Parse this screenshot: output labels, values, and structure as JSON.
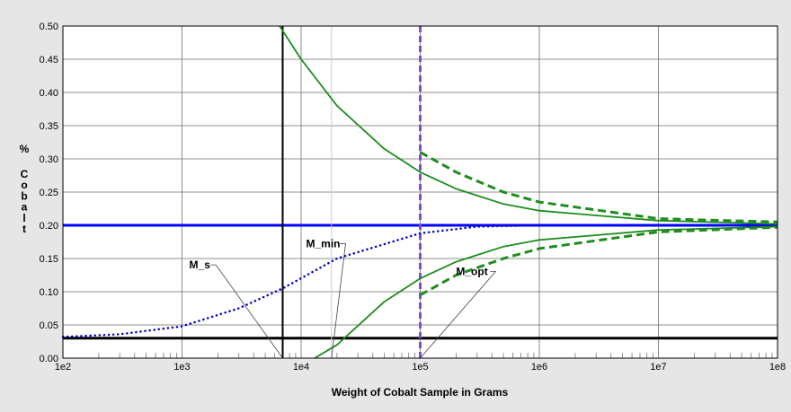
{
  "chart_data": {
    "type": "line",
    "title": "",
    "xlabel": "Weight of Cobalt Sample in Grams",
    "ylabel": "% Cobalt",
    "xscale": "log",
    "xlim": [
      100,
      100000000
    ],
    "ylim": [
      0,
      0.5
    ],
    "grid": true,
    "legend": "none",
    "x_tick_labels": [
      "1e2",
      "1e3",
      "1e4",
      "1e5",
      "1e6",
      "1e7",
      "1e8"
    ],
    "y_tick_labels": [
      "0.00",
      "0.05",
      "0.10",
      "0.15",
      "0.20",
      "0.25",
      "0.30",
      "0.35",
      "0.40",
      "0.45",
      "0.50"
    ],
    "colors": {
      "background": "#e6e6e6",
      "plot_bg": "#ffffff",
      "grid": "#6e6e6e",
      "mean_line": "#0000ff",
      "dotted_curve": "#0000cc",
      "bounds": "#1f8c1f",
      "vertical_opt": "#7f4fd0",
      "vertical_s": "#000000",
      "baseline": "#000000"
    },
    "reference_lines": {
      "horizontal": [
        {
          "y": 0.2,
          "color": "#0000ff",
          "style": "solid"
        },
        {
          "y": 0.03,
          "color": "#000000",
          "style": "solid"
        }
      ],
      "vertical": [
        {
          "x": 7000,
          "color": "#000000",
          "style": "solid"
        },
        {
          "x": 100000,
          "color": "#7f4fd0",
          "style": "dashed"
        },
        {
          "x": 18000,
          "color": "#c8c8e6",
          "style": "solid"
        }
      ]
    },
    "curves": [
      {
        "id": "upper-bound",
        "style": "solid",
        "x": [
          6600,
          10000,
          20000,
          50000,
          100000,
          200000,
          500000,
          1000000,
          10000000,
          100000000
        ],
        "y": [
          0.5,
          0.45,
          0.38,
          0.315,
          0.28,
          0.255,
          0.232,
          0.222,
          0.207,
          0.202
        ]
      },
      {
        "id": "lower-bound",
        "style": "solid",
        "x": [
          13000,
          20000,
          50000,
          100000,
          200000,
          500000,
          1000000,
          10000000,
          100000000
        ],
        "y": [
          0.0,
          0.02,
          0.085,
          0.12,
          0.145,
          0.168,
          0.178,
          0.193,
          0.198
        ]
      },
      {
        "id": "upper-bound-opt",
        "style": "dashed",
        "x": [
          100000,
          200000,
          500000,
          1000000,
          10000000,
          100000000
        ],
        "y": [
          0.31,
          0.28,
          0.25,
          0.235,
          0.21,
          0.205
        ]
      },
      {
        "id": "lower-bound-opt",
        "style": "dashed",
        "x": [
          100000,
          200000,
          500000,
          1000000,
          10000000,
          100000000
        ],
        "y": [
          0.095,
          0.125,
          0.15,
          0.165,
          0.19,
          0.197
        ]
      },
      {
        "id": "cumulative",
        "style": "dotted",
        "x": [
          100,
          300,
          1000,
          3000,
          7000,
          20000,
          100000,
          300000,
          1000000
        ],
        "y": [
          0.032,
          0.036,
          0.048,
          0.075,
          0.105,
          0.15,
          0.188,
          0.198,
          0.2
        ]
      }
    ],
    "annotations": [
      {
        "text": "M_s",
        "x": 1150,
        "y": 0.135,
        "target_x": 7000,
        "target_y": 0.0
      },
      {
        "text": "M_min",
        "x": 11000,
        "y": 0.167,
        "target_x": 18000,
        "target_y": 0.0
      },
      {
        "text": "M_opt",
        "x": 200000,
        "y": 0.125,
        "target_x": 100000,
        "target_y": 0.0
      }
    ]
  }
}
